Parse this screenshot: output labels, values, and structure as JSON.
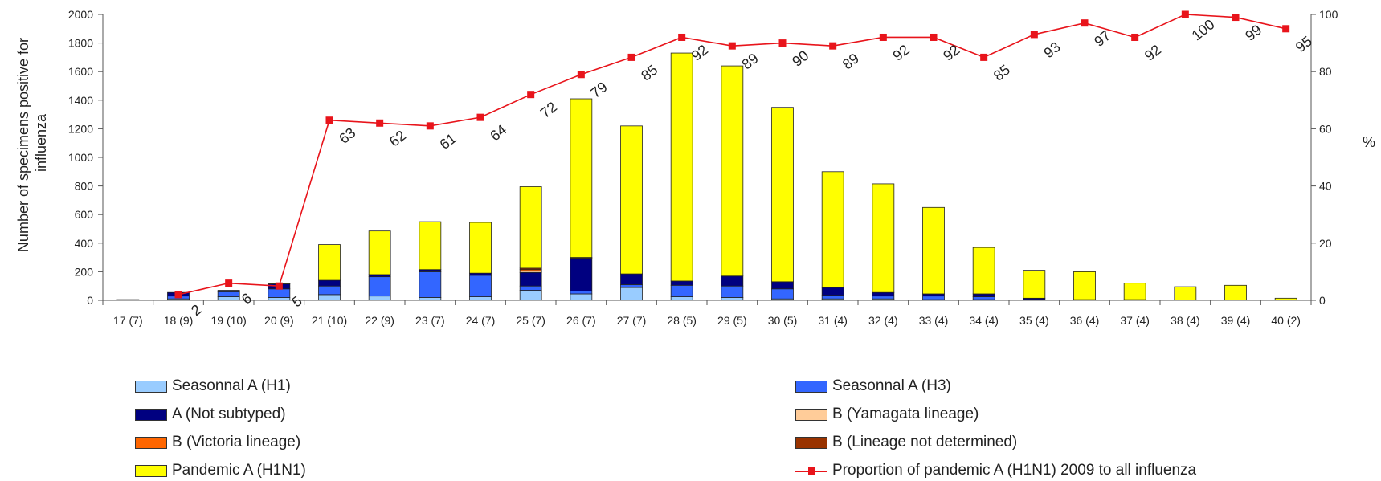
{
  "chart_data": {
    "type": "bar",
    "stacked": true,
    "title": "",
    "xlabel": "",
    "ylabel": "Number of specimens positive for influenza",
    "ylabel_lines": [
      "Number of specimens positive for",
      "influenza"
    ],
    "y2label": "%",
    "ylim": [
      0,
      2000
    ],
    "y2lim": [
      0,
      100
    ],
    "yticks": [
      "0",
      "200",
      "400",
      "600",
      "800",
      "1000",
      "1200",
      "1400",
      "1600",
      "1800",
      "2000"
    ],
    "y2ticks": [
      "0",
      "20",
      "40",
      "60",
      "80",
      "100"
    ],
    "grid": false,
    "legend_position": "bottom",
    "categories": [
      "17 (7)",
      "18 (9)",
      "19 (10)",
      "20 (9)",
      "21 (10)",
      "22 (9)",
      "23 (7)",
      "24 (7)",
      "25 (7)",
      "26 (7)",
      "27 (7)",
      "28 (5)",
      "29 (5)",
      "30 (5)",
      "31 (4)",
      "32 (4)",
      "33 (4)",
      "34 (4)",
      "35 (4)",
      "36 (4)",
      "37 (4)",
      "38 (4)",
      "39 (4)",
      "40 (2)"
    ],
    "series": [
      {
        "name": "Seasonnal A (H1)",
        "color": "#99ccff",
        "values": [
          0,
          10,
          25,
          20,
          40,
          30,
          20,
          25,
          70,
          45,
          90,
          25,
          20,
          10,
          10,
          10,
          5,
          5,
          0,
          0,
          0,
          0,
          0,
          0
        ]
      },
      {
        "name": "Seasonnal A (H3)",
        "color": "#3366ff",
        "values": [
          0,
          20,
          35,
          60,
          60,
          135,
          180,
          150,
          30,
          20,
          20,
          80,
          80,
          70,
          25,
          20,
          25,
          20,
          5,
          0,
          0,
          0,
          0,
          0
        ]
      },
      {
        "name": "A (Not subtyped)",
        "color": "#000080",
        "values": [
          0,
          25,
          10,
          35,
          40,
          15,
          15,
          15,
          95,
          225,
          75,
          30,
          70,
          50,
          55,
          25,
          15,
          20,
          10,
          5,
          5,
          0,
          0,
          0
        ]
      },
      {
        "name": "B (Yamagata lineage)",
        "color": "#ffcc99",
        "values": [
          0,
          0,
          0,
          0,
          0,
          0,
          0,
          0,
          10,
          5,
          0,
          0,
          0,
          0,
          0,
          0,
          0,
          0,
          0,
          0,
          0,
          0,
          0,
          0
        ]
      },
      {
        "name": "B (Victoria lineage)",
        "color": "#ff6600",
        "values": [
          0,
          0,
          0,
          0,
          0,
          0,
          0,
          0,
          10,
          0,
          0,
          0,
          0,
          0,
          0,
          0,
          0,
          0,
          0,
          0,
          0,
          0,
          0,
          0
        ]
      },
      {
        "name": "B (Lineage not determined)",
        "color": "#993300",
        "values": [
          0,
          0,
          0,
          0,
          0,
          0,
          0,
          0,
          10,
          5,
          0,
          0,
          0,
          0,
          0,
          0,
          0,
          0,
          0,
          0,
          0,
          0,
          0,
          0
        ]
      },
      {
        "name": "Pandemic A (H1N1)",
        "color": "#ffff00",
        "values": [
          5,
          0,
          0,
          5,
          250,
          305,
          335,
          355,
          570,
          1110,
          1035,
          1595,
          1470,
          1220,
          810,
          760,
          605,
          325,
          195,
          195,
          115,
          95,
          105,
          15
        ]
      }
    ],
    "line_series": {
      "name": "Proportion of pandemic A (H1N1) 2009 to all influenza",
      "color": "#e8141b",
      "axis": "right",
      "start_index": 1,
      "values": [
        2,
        6,
        5,
        63,
        62,
        61,
        64,
        72,
        79,
        85,
        92,
        89,
        90,
        89,
        92,
        92,
        85,
        93,
        97,
        92,
        100,
        99,
        95
      ],
      "labels": [
        "2",
        "6",
        "5",
        "63",
        "62",
        "61",
        "64",
        "72",
        "79",
        "85",
        "92",
        "89",
        "90",
        "89",
        "92",
        "92",
        "85",
        "93",
        "97",
        "92",
        "100",
        "99",
        "95"
      ]
    }
  }
}
